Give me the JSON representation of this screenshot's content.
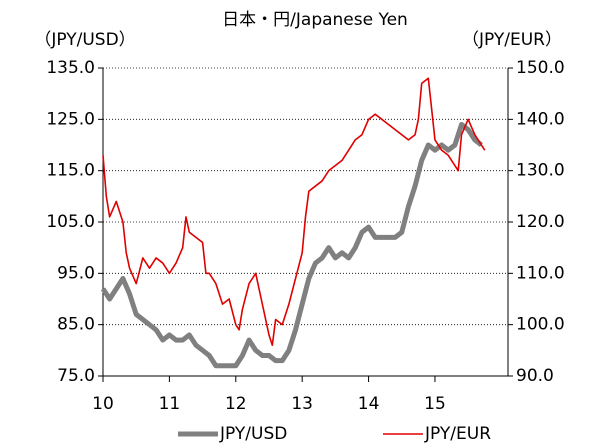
{
  "chart_data": {
    "type": "line",
    "title": "日本・円/Japanese Yen",
    "y_label": "（JPY/USD）",
    "y2_label": "（JPY/EUR）",
    "xlim": [
      10,
      16.1
    ],
    "xticks": [
      10,
      11,
      12,
      13,
      14,
      15
    ],
    "ylim": [
      75,
      135
    ],
    "yticks": [
      {
        "value": 75,
        "label": "75.0"
      },
      {
        "value": 85,
        "label": "85.0"
      },
      {
        "value": 95,
        "label": "95.0"
      },
      {
        "value": 105,
        "label": "105.0"
      },
      {
        "value": 115,
        "label": "115.0"
      },
      {
        "value": 125,
        "label": "125.0"
      },
      {
        "value": 135,
        "label": "135.0"
      }
    ],
    "y2lim": [
      90,
      150
    ],
    "y2ticks": [
      {
        "value": 90,
        "label": "90.0"
      },
      {
        "value": 100,
        "label": "100.0"
      },
      {
        "value": 110,
        "label": "110.0"
      },
      {
        "value": 120,
        "label": "120.0"
      },
      {
        "value": 130,
        "label": "130.0"
      },
      {
        "value": 140,
        "label": "140.0"
      },
      {
        "value": 150,
        "label": "150.0"
      }
    ],
    "grid": true,
    "legend": "bottom",
    "series": [
      {
        "name": "JPY/USD",
        "color": "#808080",
        "x": [
          10.0,
          10.1,
          10.2,
          10.3,
          10.4,
          10.5,
          10.6,
          10.7,
          10.8,
          10.9,
          11.0,
          11.1,
          11.2,
          11.3,
          11.4,
          11.5,
          11.6,
          11.7,
          11.8,
          11.9,
          12.0,
          12.1,
          12.2,
          12.3,
          12.4,
          12.5,
          12.6,
          12.7,
          12.8,
          12.9,
          13.0,
          13.1,
          13.2,
          13.3,
          13.4,
          13.5,
          13.6,
          13.7,
          13.8,
          13.9,
          14.0,
          14.1,
          14.2,
          14.3,
          14.4,
          14.5,
          14.6,
          14.7,
          14.8,
          14.9,
          15.0,
          15.1,
          15.2,
          15.3,
          15.4,
          15.5,
          15.6,
          15.7
        ],
        "values": [
          92,
          90,
          92,
          94,
          91,
          87,
          86,
          85,
          84,
          82,
          83,
          82,
          82,
          83,
          81,
          80,
          79,
          77,
          77,
          77,
          77,
          79,
          82,
          80,
          79,
          79,
          78,
          78,
          80,
          84,
          89,
          94,
          97,
          98,
          100,
          98,
          99,
          98,
          100,
          103,
          104,
          102,
          102,
          102,
          102,
          103,
          108,
          112,
          117,
          120,
          119,
          120,
          119,
          120,
          124,
          123,
          121,
          120
        ]
      },
      {
        "name": "JPY/EUR",
        "color": "#e00000",
        "axis": "y2",
        "x": [
          10.0,
          10.05,
          10.1,
          10.2,
          10.3,
          10.35,
          10.4,
          10.5,
          10.6,
          10.7,
          10.8,
          10.9,
          11.0,
          11.1,
          11.2,
          11.25,
          11.3,
          11.4,
          11.5,
          11.55,
          11.6,
          11.7,
          11.8,
          11.9,
          12.0,
          12.05,
          12.1,
          12.2,
          12.3,
          12.4,
          12.5,
          12.55,
          12.6,
          12.7,
          12.8,
          12.9,
          13.0,
          13.05,
          13.1,
          13.2,
          13.3,
          13.4,
          13.5,
          13.6,
          13.7,
          13.8,
          13.9,
          14.0,
          14.1,
          14.2,
          14.3,
          14.4,
          14.5,
          14.6,
          14.7,
          14.75,
          14.8,
          14.9,
          14.95,
          15.0,
          15.1,
          15.2,
          15.3,
          15.35,
          15.4,
          15.5,
          15.6,
          15.7,
          15.75
        ],
        "values": [
          133,
          125,
          121,
          124,
          120,
          114,
          111,
          108,
          113,
          111,
          113,
          112,
          110,
          112,
          115,
          121,
          118,
          117,
          116,
          110,
          110,
          108,
          104,
          105,
          100,
          99,
          103,
          108,
          110,
          104,
          98,
          96,
          101,
          100,
          104,
          109,
          114,
          121,
          126,
          127,
          128,
          130,
          131,
          132,
          134,
          136,
          137,
          140,
          141,
          140,
          139,
          138,
          137,
          136,
          137,
          140,
          147,
          148,
          142,
          136,
          134,
          133,
          131,
          130,
          137,
          140,
          137,
          135,
          134
        ]
      }
    ]
  }
}
